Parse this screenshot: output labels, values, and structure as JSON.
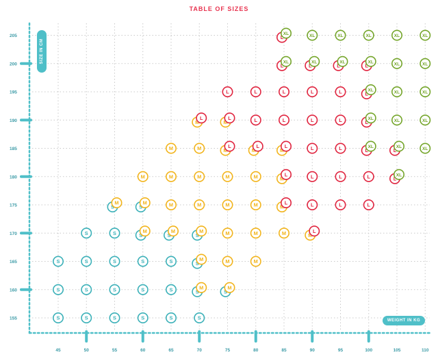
{
  "chart_data": {
    "type": "scatter",
    "title": "TABLE OF SIZES",
    "xlabel": "WEIGHT IN KG",
    "ylabel": "SIZE IN CM",
    "xlim": [
      42,
      111
    ],
    "ylim": [
      153,
      207
    ],
    "x_ticks": [
      45,
      50,
      55,
      60,
      65,
      70,
      75,
      80,
      85,
      90,
      95,
      100,
      105,
      110
    ],
    "y_ticks": [
      155,
      160,
      165,
      170,
      175,
      180,
      185,
      190,
      195,
      200,
      205
    ],
    "grid": true,
    "colors": {
      "S": "#3ab0b8",
      "M": "#f2b41b",
      "L": "#e0233e",
      "XL": "#74a52a",
      "axis": "#4fbfc8",
      "title": "#e8334f",
      "tick": "#3a9aa6"
    },
    "series": [
      {
        "name": "S",
        "points": [
          [
            45,
            155
          ],
          [
            50,
            155
          ],
          [
            55,
            155
          ],
          [
            60,
            155
          ],
          [
            65,
            155
          ],
          [
            70,
            155
          ],
          [
            45,
            160
          ],
          [
            50,
            160
          ],
          [
            55,
            160
          ],
          [
            60,
            160
          ],
          [
            65,
            160
          ],
          [
            70,
            160
          ],
          [
            75,
            160
          ],
          [
            45,
            165
          ],
          [
            50,
            165
          ],
          [
            55,
            165
          ],
          [
            60,
            165
          ],
          [
            65,
            165
          ],
          [
            70,
            165
          ],
          [
            50,
            170
          ],
          [
            55,
            170
          ],
          [
            60,
            170
          ],
          [
            65,
            170
          ],
          [
            70,
            170
          ],
          [
            55,
            175
          ],
          [
            60,
            175
          ]
        ]
      },
      {
        "name": "M",
        "points": [
          [
            70,
            160
          ],
          [
            75,
            160
          ],
          [
            70,
            165
          ],
          [
            75,
            165
          ],
          [
            80,
            165
          ],
          [
            60,
            170
          ],
          [
            65,
            170
          ],
          [
            70,
            170
          ],
          [
            75,
            170
          ],
          [
            80,
            170
          ],
          [
            85,
            170
          ],
          [
            90,
            170
          ],
          [
            55,
            175
          ],
          [
            60,
            175
          ],
          [
            65,
            175
          ],
          [
            70,
            175
          ],
          [
            75,
            175
          ],
          [
            80,
            175
          ],
          [
            85,
            175
          ],
          [
            60,
            180
          ],
          [
            65,
            180
          ],
          [
            70,
            180
          ],
          [
            75,
            180
          ],
          [
            80,
            180
          ],
          [
            85,
            180
          ],
          [
            65,
            185
          ],
          [
            70,
            185
          ],
          [
            75,
            185
          ],
          [
            80,
            185
          ],
          [
            85,
            185
          ],
          [
            70,
            190
          ],
          [
            75,
            190
          ]
        ]
      },
      {
        "name": "L",
        "points": [
          [
            90,
            170
          ],
          [
            85,
            175
          ],
          [
            90,
            175
          ],
          [
            95,
            175
          ],
          [
            100,
            175
          ],
          [
            85,
            180
          ],
          [
            90,
            180
          ],
          [
            95,
            180
          ],
          [
            100,
            180
          ],
          [
            105,
            180
          ],
          [
            75,
            185
          ],
          [
            80,
            185
          ],
          [
            85,
            185
          ],
          [
            90,
            185
          ],
          [
            95,
            185
          ],
          [
            100,
            185
          ],
          [
            105,
            185
          ],
          [
            70,
            190
          ],
          [
            75,
            190
          ],
          [
            80,
            190
          ],
          [
            85,
            190
          ],
          [
            90,
            190
          ],
          [
            95,
            190
          ],
          [
            100,
            190
          ],
          [
            75,
            195
          ],
          [
            80,
            195
          ],
          [
            85,
            195
          ],
          [
            90,
            195
          ],
          [
            95,
            195
          ],
          [
            100,
            195
          ],
          [
            85,
            200
          ],
          [
            90,
            200
          ],
          [
            95,
            200
          ],
          [
            100,
            200
          ],
          [
            85,
            205
          ]
        ]
      },
      {
        "name": "XL",
        "points": [
          [
            105,
            180
          ],
          [
            100,
            185
          ],
          [
            105,
            185
          ],
          [
            110,
            185
          ],
          [
            100,
            190
          ],
          [
            105,
            190
          ],
          [
            110,
            190
          ],
          [
            100,
            195
          ],
          [
            105,
            195
          ],
          [
            110,
            195
          ],
          [
            85,
            200
          ],
          [
            90,
            200
          ],
          [
            95,
            200
          ],
          [
            100,
            200
          ],
          [
            105,
            200
          ],
          [
            110,
            200
          ],
          [
            85,
            205
          ],
          [
            90,
            205
          ],
          [
            95,
            205
          ],
          [
            100,
            205
          ],
          [
            105,
            205
          ],
          [
            110,
            205
          ]
        ]
      }
    ]
  }
}
